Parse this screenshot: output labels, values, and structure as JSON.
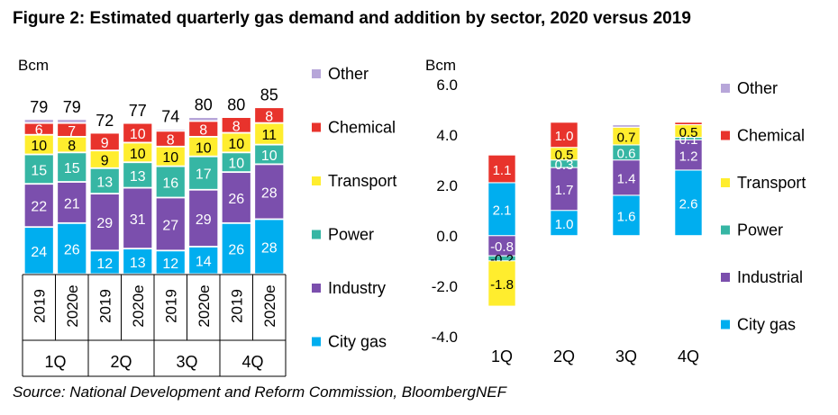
{
  "figure": {
    "title": "Figure 2: Estimated quarterly gas demand and addition by sector, 2020 versus 2019",
    "source": "Source: National Development and Reform Commission, BloombergNEF"
  },
  "colors": {
    "City gas": "#00aeef",
    "Industry": "#7b4fad",
    "Industrial": "#7b4fad",
    "Power": "#36b6a4",
    "Transport": "#ffed2e",
    "Chemical": "#e8332c",
    "Other": "#b7a6d9"
  },
  "chart_data": [
    {
      "type": "bar",
      "stacked": true,
      "ylabel": "Bcm",
      "categories": [
        "2019",
        "2020e",
        "2019",
        "2020e",
        "2019",
        "2020e",
        "2019",
        "2020e"
      ],
      "groups": [
        "1Q",
        "2Q",
        "3Q",
        "4Q"
      ],
      "totals": [
        79,
        79,
        72,
        77,
        74,
        80,
        80,
        85
      ],
      "series": [
        {
          "name": "City gas",
          "values": [
            24,
            26,
            12,
            13,
            12,
            14,
            26,
            28
          ]
        },
        {
          "name": "Industry",
          "values": [
            22,
            21,
            29,
            31,
            27,
            29,
            26,
            28
          ]
        },
        {
          "name": "Power",
          "values": [
            15,
            15,
            13,
            13,
            16,
            17,
            10,
            10
          ]
        },
        {
          "name": "Transport",
          "values": [
            10,
            8,
            9,
            10,
            10,
            10,
            10,
            11
          ]
        },
        {
          "name": "Chemical",
          "values": [
            6,
            7,
            9,
            10,
            8,
            8,
            8,
            8
          ]
        },
        {
          "name": "Other",
          "values": [
            2,
            2,
            0,
            0,
            1,
            2,
            0,
            0
          ]
        }
      ],
      "legend_position": "right",
      "grid": false
    },
    {
      "type": "bar",
      "stacked": true,
      "ylabel": "Bcm",
      "categories": [
        "1Q",
        "2Q",
        "3Q",
        "4Q"
      ],
      "ylim": [
        -4.0,
        6.0
      ],
      "yticks": [
        "6.0",
        "4.0",
        "2.0",
        "0.0",
        "-2.0",
        "-4.0"
      ],
      "series": [
        {
          "name": "City gas",
          "values": [
            2.1,
            1.0,
            1.6,
            2.6
          ],
          "labels": [
            "2.1",
            "1.0",
            "1.6",
            "2.6"
          ]
        },
        {
          "name": "Industrial",
          "values": [
            -0.8,
            1.7,
            1.4,
            1.2
          ],
          "labels": [
            "-0.8",
            "1.7",
            "1.4",
            "1.2"
          ]
        },
        {
          "name": "Power",
          "values": [
            -0.2,
            0.3,
            0.6,
            0.1
          ],
          "labels": [
            "-0.2",
            "0.3",
            "0.6",
            "0.1"
          ]
        },
        {
          "name": "Transport",
          "values": [
            -1.8,
            0.5,
            0.7,
            0.5
          ],
          "labels": [
            "-1.8",
            "0.5",
            "0.7",
            "0.5"
          ]
        },
        {
          "name": "Chemical",
          "values": [
            1.1,
            1.0,
            0.0,
            0.1
          ],
          "labels": [
            "1.1",
            "1.0",
            "",
            ""
          ]
        },
        {
          "name": "Other",
          "values": [
            0.0,
            0.0,
            0.1,
            0.0
          ],
          "labels": [
            "",
            "",
            "",
            ""
          ]
        }
      ],
      "legend_position": "right",
      "grid": false
    }
  ]
}
